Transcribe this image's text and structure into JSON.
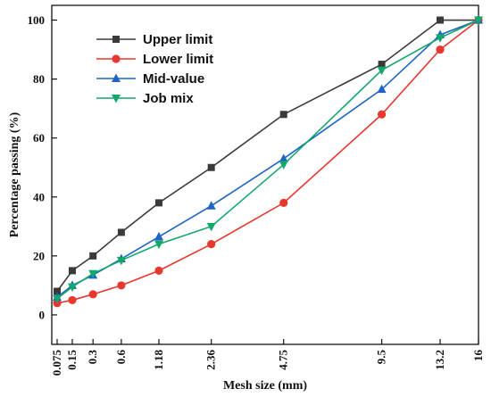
{
  "chart_data": {
    "type": "line",
    "xlabel": "Mesh size (mm)",
    "ylabel": "Percentage passing (%)",
    "ylim": [
      -10,
      105
    ],
    "yticks": [
      0,
      20,
      40,
      60,
      80,
      100
    ],
    "ytick_labels": [
      "0",
      "20",
      "40",
      "60",
      "80",
      "100"
    ],
    "x": [
      0.075,
      0.15,
      0.3,
      0.6,
      1.18,
      2.36,
      4.75,
      9.5,
      13.2,
      16
    ],
    "x_tick_labels": [
      "0.075",
      "0.15",
      "0.3",
      "0.6",
      "1.18",
      "2.36",
      "4.75",
      "9.5",
      "13.2",
      "16"
    ],
    "x_scale": "power 0.45",
    "grid": false,
    "legend_position": "top-left",
    "series": [
      {
        "name": "Upper limit",
        "color": "#3a3a3a",
        "marker": "square",
        "values": [
          8,
          15,
          20,
          28,
          38,
          50,
          68,
          85,
          100,
          100
        ]
      },
      {
        "name": "Lower limit",
        "color": "#e8372f",
        "marker": "circle",
        "values": [
          4,
          5,
          7,
          10,
          15,
          24,
          38,
          68,
          90,
          100
        ]
      },
      {
        "name": "Mid-value",
        "color": "#1f63c4",
        "marker": "triangle-up",
        "values": [
          6,
          10,
          13.5,
          19,
          26.5,
          37,
          53,
          76.5,
          95,
          100
        ]
      },
      {
        "name": "Job mix",
        "color": "#13a86b",
        "marker": "triangle-down",
        "values": [
          5.5,
          9.5,
          14,
          18.5,
          24,
          30,
          51,
          83,
          94,
          100
        ]
      }
    ]
  }
}
